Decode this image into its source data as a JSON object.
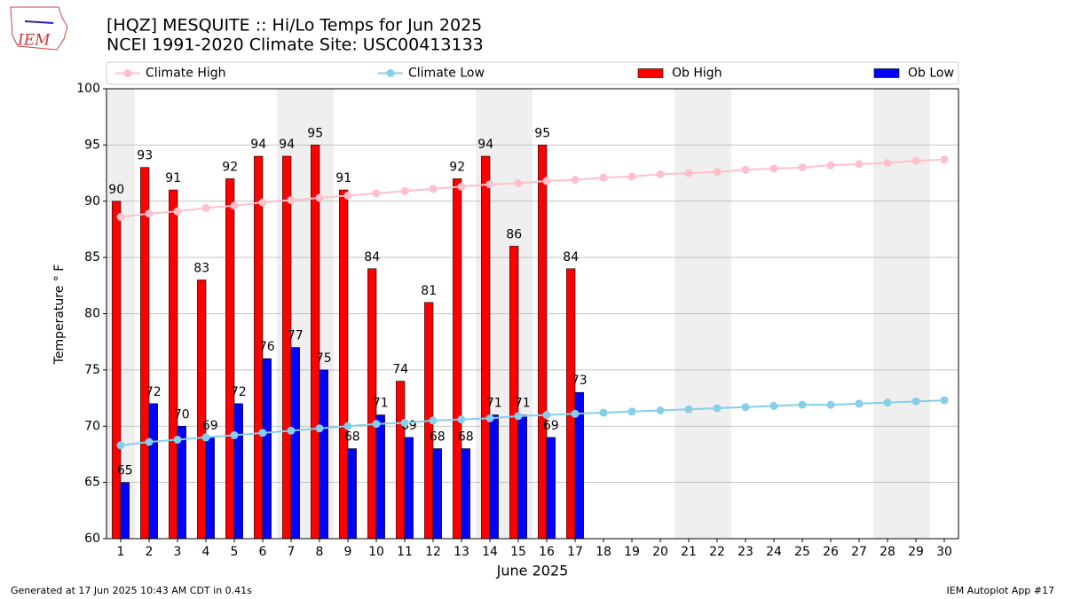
{
  "logo": "IEM",
  "footer_left": "Generated at 17 Jun 2025 10:43 AM CDT in 0.41s",
  "footer_right": "IEM Autoplot App #17",
  "chart_data": {
    "type": "bar",
    "title": "[HQZ] MESQUITE :: Hi/Lo Temps for Jun 2025",
    "subtitle": "NCEI 1991-2020 Climate Site: USC00413133",
    "xlabel": "June 2025",
    "ylabel": "Temperature ° F",
    "x": [
      1,
      2,
      3,
      4,
      5,
      6,
      7,
      8,
      9,
      10,
      11,
      12,
      13,
      14,
      15,
      16,
      17,
      18,
      19,
      20,
      21,
      22,
      23,
      24,
      25,
      26,
      27,
      28,
      29,
      30
    ],
    "xlim": [
      0.5,
      30.5
    ],
    "xticks": [
      1,
      2,
      3,
      4,
      5,
      6,
      7,
      8,
      9,
      10,
      11,
      12,
      13,
      14,
      15,
      16,
      17,
      18,
      19,
      20,
      21,
      22,
      23,
      24,
      25,
      26,
      27,
      28,
      29,
      30
    ],
    "ylim": [
      60,
      100
    ],
    "yticks": [
      60,
      65,
      70,
      75,
      80,
      85,
      90,
      95,
      100
    ],
    "grid": true,
    "legend": "top",
    "series": [
      {
        "name": "Climate High",
        "color": "#ffc0cb",
        "kind": "line",
        "values": [
          88.6,
          88.9,
          89.1,
          89.4,
          89.6,
          89.9,
          90.1,
          90.3,
          90.5,
          90.7,
          90.9,
          91.1,
          91.3,
          91.5,
          91.6,
          91.8,
          91.9,
          92.1,
          92.2,
          92.4,
          92.5,
          92.6,
          92.8,
          92.9,
          93.0,
          93.2,
          93.3,
          93.4,
          93.6,
          93.7
        ]
      },
      {
        "name": "Climate Low",
        "color": "#87ceeb",
        "kind": "line",
        "values": [
          68.3,
          68.6,
          68.8,
          69.0,
          69.2,
          69.4,
          69.6,
          69.8,
          70.0,
          70.2,
          70.3,
          70.5,
          70.6,
          70.7,
          70.9,
          71.0,
          71.1,
          71.2,
          71.3,
          71.4,
          71.5,
          71.6,
          71.7,
          71.8,
          71.9,
          71.9,
          72.0,
          72.1,
          72.2,
          72.3
        ]
      },
      {
        "name": "Ob High",
        "color": "#ff0000",
        "kind": "bar",
        "values": [
          90,
          93,
          91,
          83,
          92,
          94,
          94,
          95,
          91,
          84,
          74,
          81,
          92,
          94,
          86,
          95,
          84,
          null,
          null,
          null,
          null,
          null,
          null,
          null,
          null,
          null,
          null,
          null,
          null,
          null
        ]
      },
      {
        "name": "Ob Low",
        "color": "#0000ff",
        "kind": "bar",
        "values": [
          65,
          72,
          70,
          69,
          72,
          76,
          77,
          75,
          68,
          71,
          69,
          68,
          68,
          71,
          71,
          69,
          73,
          null,
          null,
          null,
          null,
          null,
          null,
          null,
          null,
          null,
          null,
          null,
          null,
          null
        ]
      }
    ]
  }
}
